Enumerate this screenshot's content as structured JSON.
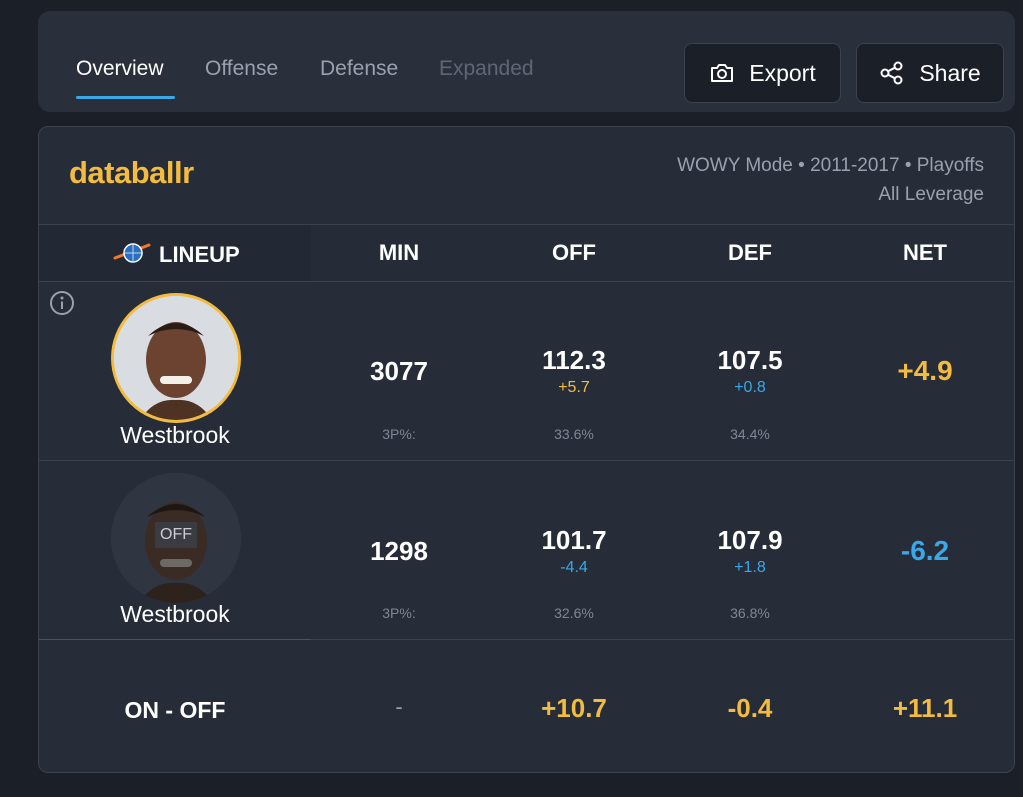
{
  "tabs": [
    {
      "label": "Overview",
      "state": "active"
    },
    {
      "label": "Offense",
      "state": "normal"
    },
    {
      "label": "Defense",
      "state": "normal"
    },
    {
      "label": "Expanded",
      "state": "disabled"
    }
  ],
  "actions": {
    "export_label": "Export",
    "export_icon": "camera-icon",
    "share_label": "Share",
    "share_icon": "share-icon"
  },
  "card": {
    "brand": "databallr",
    "mode_line1": "WOWY Mode • 2011-2017 • Playoffs",
    "mode_line2": "All Leverage"
  },
  "columns": {
    "lineup": "LINEUP",
    "min": "MIN",
    "off": "OFF",
    "def": "DEF",
    "net": "NET"
  },
  "rows": [
    {
      "player": "Westbrook",
      "status": "on",
      "min": "3077",
      "min_sub": "3P%:",
      "off": "112.3",
      "off_diff": "+5.7",
      "off_3p": "33.6%",
      "def": "107.5",
      "def_diff": "+0.8",
      "def_3p": "34.4%",
      "net": "+4.9"
    },
    {
      "player": "Westbrook",
      "status": "off",
      "off_badge": "OFF",
      "min": "1298",
      "min_sub": "3P%:",
      "off": "101.7",
      "off_diff": "-4.4",
      "off_3p": "32.6%",
      "def": "107.9",
      "def_diff": "+1.8",
      "def_3p": "36.8%",
      "net": "-6.2"
    }
  ],
  "summary": {
    "label": "ON - OFF",
    "min": "-",
    "off": "+10.7",
    "def": "-0.4",
    "net": "+11.1"
  },
  "colors": {
    "accent_gold": "#f3bc3f",
    "accent_blue": "#3aa8e6",
    "background": "#1b1f27",
    "panel": "#272d38"
  }
}
